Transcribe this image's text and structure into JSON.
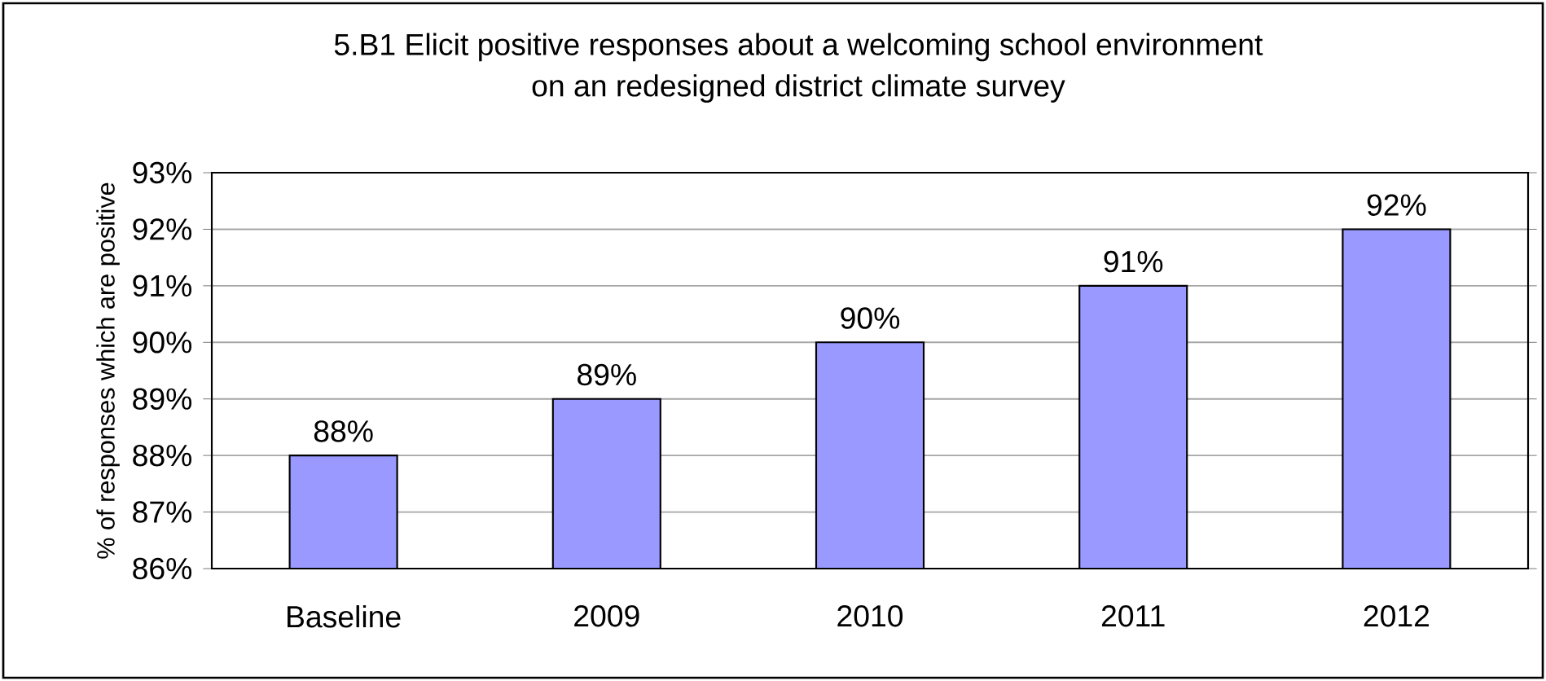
{
  "chart_data": {
    "type": "bar",
    "title": "5.B1  Elicit positive responses about a welcoming school environment\non an redesigned district climate survey",
    "ylabel": "% of responses which are positive",
    "categories": [
      "Baseline",
      "2009",
      "2010",
      "2011",
      "2012"
    ],
    "values": [
      88,
      89,
      90,
      91,
      92
    ],
    "value_labels": [
      "88%",
      "89%",
      "90%",
      "91%",
      "92%"
    ],
    "color": "#9999ff",
    "ylim": [
      86,
      93
    ],
    "yticks": [
      {
        "value": 86,
        "label": "86%"
      },
      {
        "value": 87,
        "label": "87%"
      },
      {
        "value": 88,
        "label": "88%"
      },
      {
        "value": 89,
        "label": "89%"
      },
      {
        "value": 90,
        "label": "90%"
      },
      {
        "value": 91,
        "label": "91%"
      },
      {
        "value": 92,
        "label": "92%"
      },
      {
        "value": 93,
        "label": "93%"
      }
    ],
    "grid": "y"
  }
}
